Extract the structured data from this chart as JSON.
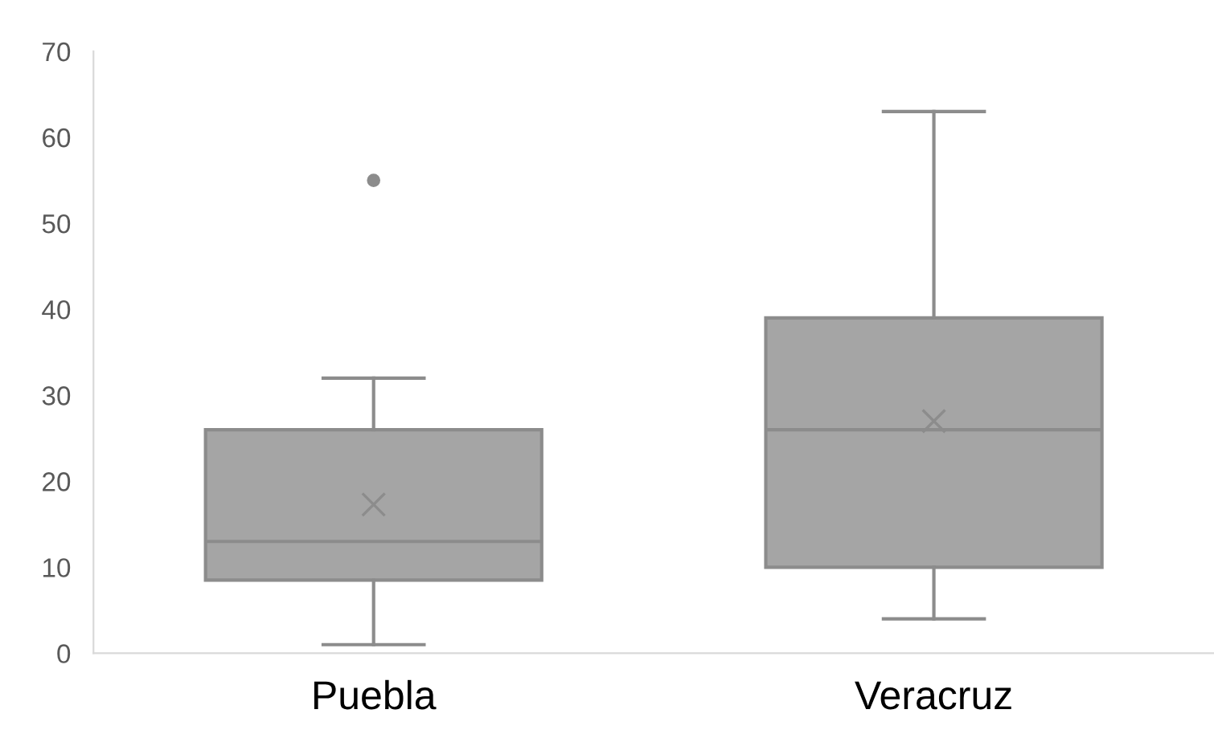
{
  "chart_data": {
    "type": "box",
    "categories": [
      "Puebla",
      "Veracruz"
    ],
    "color": "#a5a5a5",
    "boxes": [
      {
        "low": 1,
        "q1": 8.5,
        "median": 13,
        "q3": 26,
        "high": 32,
        "mean": 17.3,
        "outliers": [
          55
        ]
      },
      {
        "low": 4,
        "q1": 10,
        "median": 26,
        "q3": 39,
        "high": 63,
        "mean": 27
      }
    ],
    "ylim": [
      0,
      70
    ],
    "yticks": [
      0,
      10,
      20,
      30,
      40,
      50,
      60,
      70
    ],
    "grid": false
  }
}
